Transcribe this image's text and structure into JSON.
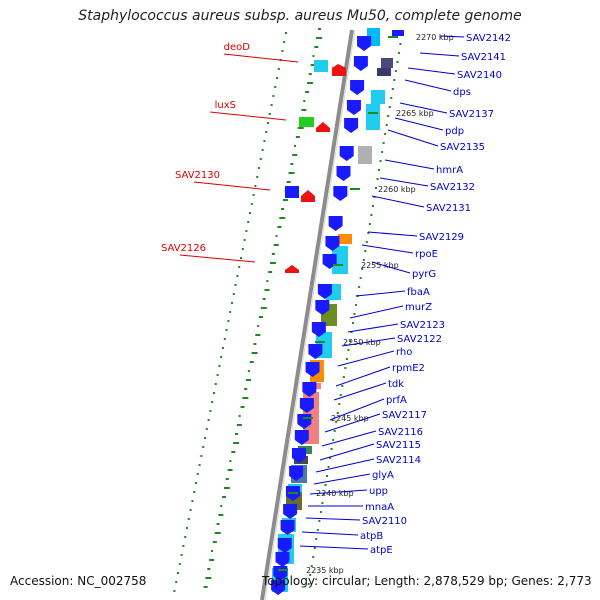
{
  "title": "Staphylococcus aureus subsp. aureus Mu50, complete genome",
  "footer": {
    "accession": "Accession: NC_002758",
    "summary": "Topology: circular; Length: 2,878,529 bp; Genes: 2,773"
  },
  "colors": {
    "backbone": "#8c8c8c",
    "right_label": "#0000cc",
    "left_label": "#dd0000",
    "gc_marks": "#1f8a1f"
  },
  "kbp_ticks": [
    "2270 kbp",
    "2265 kbp",
    "2260 kbp",
    "2255 kbp",
    "2250 kbp",
    "2245 kbp",
    "2240 kbp",
    "2235 kbp"
  ],
  "left_genes": [
    "deoD",
    "luxS",
    "SAV2130",
    "SAV2126"
  ],
  "right_genes": [
    "SAV2142",
    "SAV2141",
    "SAV2140",
    "dps",
    "SAV2137",
    "pdp",
    "SAV2135",
    "hmrA",
    "SAV2132",
    "SAV2131",
    "SAV2129",
    "rpoE",
    "pyrG",
    "fbaA",
    "murZ",
    "SAV2123",
    "SAV2122",
    "rho",
    "rpmE2",
    "tdk",
    "prfA",
    "SAV2117",
    "SAV2116",
    "SAV2115",
    "SAV2114",
    "glyA",
    "upp",
    "mnaA",
    "SAV2110",
    "atpB",
    "atpE"
  ]
}
